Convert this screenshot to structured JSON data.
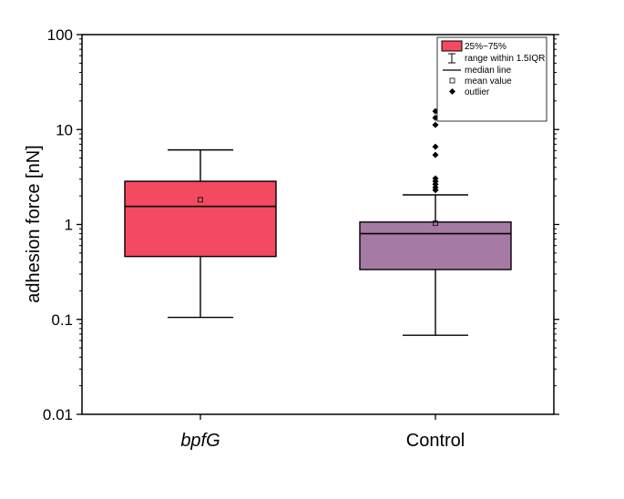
{
  "chart_data": {
    "type": "box",
    "title": "",
    "xlabel": "",
    "ylabel": "adhesion force [nN]",
    "yscale": "log",
    "ylim": [
      0.01,
      100
    ],
    "yticks": [
      {
        "value": 0.01,
        "label": "0.01"
      },
      {
        "value": 0.1,
        "label": "0.1"
      },
      {
        "value": 1,
        "label": "1"
      },
      {
        "value": 10,
        "label": "10"
      },
      {
        "value": 100,
        "label": "100"
      }
    ],
    "categories": [
      "bpfG",
      "Control"
    ],
    "category_italic": [
      true,
      false
    ],
    "boxes": [
      {
        "name": "bpfG",
        "color": "#f34a61",
        "whisker_low": 0.105,
        "q1": 0.46,
        "median": 1.55,
        "q3": 2.85,
        "whisker_high": 6.1,
        "mean": 1.82,
        "outliers": []
      },
      {
        "name": "Control",
        "color": "#a57ba5",
        "whisker_low": 0.068,
        "q1": 0.335,
        "median": 0.8,
        "q3": 1.06,
        "whisker_high": 2.05,
        "mean": 1.03,
        "outliers": [
          2.3,
          2.45,
          2.65,
          2.85,
          3.05,
          5.4,
          6.6,
          11.2,
          13.3,
          15.6
        ]
      }
    ],
    "legend": {
      "position": "top-right",
      "entries": [
        {
          "symbol": "box",
          "label": "25%~75%"
        },
        {
          "symbol": "whisker",
          "label": "range within 1.5IQR"
        },
        {
          "symbol": "line",
          "label": "median line"
        },
        {
          "symbol": "open-square",
          "label": "mean value"
        },
        {
          "symbol": "diamond",
          "label": "outlier"
        }
      ]
    }
  }
}
